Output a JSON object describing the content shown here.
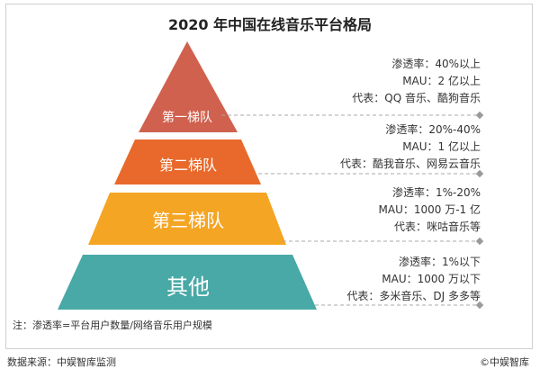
{
  "title": "2020 年中国在线音乐平台格局",
  "tiers": [
    {
      "label": "第一梯队",
      "color": "#d0614e",
      "info": [
        "渗透率：40%以上",
        "MAU：2 亿以上",
        "代表：QQ 音乐、酷狗音乐"
      ]
    },
    {
      "label": "第二梯队",
      "color": "#e8692b",
      "info": [
        "渗透率：20%-40%",
        "MAU：1 亿以上",
        "代表：酷我音乐、网易云音乐"
      ]
    },
    {
      "label": "第三梯队",
      "color": "#f5a524",
      "info": [
        "渗透率：1%-20%",
        "MAU：1000 万-1 亿",
        "代表：咪咕音乐等"
      ]
    },
    {
      "label": "其他",
      "color": "#48a9a6",
      "info": [
        "渗透率：1%以下",
        "MAU：1000 万以下",
        "代表：多米音乐、DJ 多多等"
      ]
    }
  ],
  "note": "注：渗透率=平台用户数量/网络音乐用户规模",
  "source": "数据来源：中娱智库监测",
  "credit": "©中娱智库"
}
